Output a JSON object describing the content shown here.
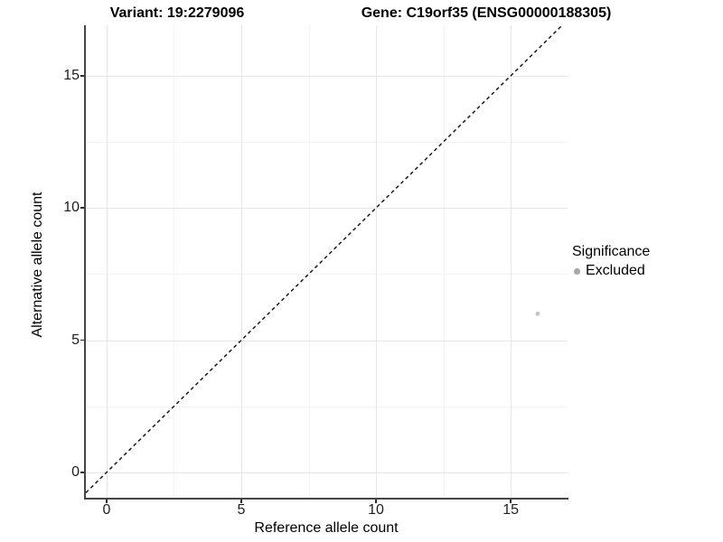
{
  "titles": {
    "variant": "Variant: 19:2279096",
    "gene": "Gene: C19orf35 (ENSG00000188305)"
  },
  "legend": {
    "title": "Significance",
    "items": [
      {
        "label": "Excluded",
        "color": "#a6a6a6"
      }
    ]
  },
  "colors": {
    "background": "#ffffff",
    "grid_major": "#e6e6e6",
    "grid_minor": "#f3f3f3",
    "axis_line": "#454545",
    "tick": "#2b2b2b",
    "tick_label": "#1f1f1f",
    "point": "#c4c4c4",
    "reference_line": "#1a1a1a"
  },
  "chart_data": {
    "type": "scatter",
    "title_left": "Variant: 19:2279096",
    "title_right": "Gene: C19orf35 (ENSG00000188305)",
    "xlabel": "Reference allele count",
    "ylabel": "Alternative allele count",
    "xlim": [
      -0.77,
      17.11
    ],
    "ylim": [
      -0.96,
      16.91
    ],
    "x_ticks": [
      0,
      5,
      10,
      15
    ],
    "y_ticks": [
      0,
      5,
      10,
      15
    ],
    "grid_major": [
      0,
      5,
      10,
      15
    ],
    "grid_minor": [
      2.5,
      7.5,
      12.5
    ],
    "grid": "on",
    "legend_position": "right",
    "reference_line": {
      "kind": "identity",
      "equation": "y = x",
      "style": "dashed",
      "color": "#1a1a1a"
    },
    "series": [
      {
        "name": "Excluded",
        "color": "#c4c4c4",
        "points": [
          {
            "x": 16,
            "y": 6
          }
        ]
      }
    ]
  }
}
